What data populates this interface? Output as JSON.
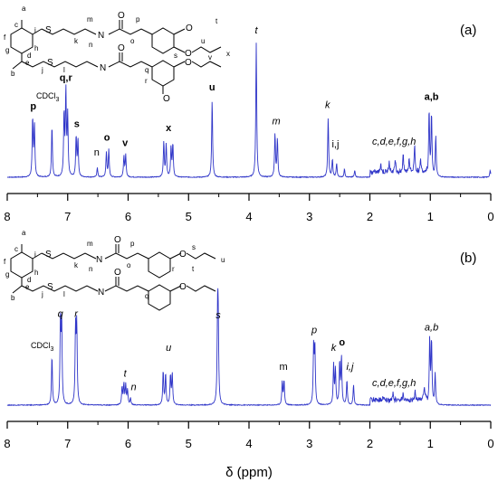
{
  "chart_data": [
    {
      "type": "line",
      "panel_label": "(a)",
      "xlim": [
        8,
        0
      ],
      "x_ticks": [
        "8",
        "7",
        "6",
        "5",
        "4",
        "3",
        "2",
        "1",
        "0"
      ],
      "solvent_label": "CDCl3",
      "series_color": "#2f35c8",
      "peaks": [
        {
          "ppm": 7.58,
          "h": 0.43
        },
        {
          "ppm": 7.55,
          "h": 0.38
        },
        {
          "ppm": 7.26,
          "h": 0.38
        },
        {
          "ppm": 7.06,
          "h": 0.46
        },
        {
          "ppm": 7.03,
          "h": 0.62
        },
        {
          "ppm": 7.0,
          "h": 0.44
        },
        {
          "ppm": 6.86,
          "h": 0.3
        },
        {
          "ppm": 6.83,
          "h": 0.27
        },
        {
          "ppm": 6.51,
          "h": 0.07
        },
        {
          "ppm": 6.36,
          "h": 0.18
        },
        {
          "ppm": 6.32,
          "h": 0.2
        },
        {
          "ppm": 6.07,
          "h": 0.15
        },
        {
          "ppm": 6.04,
          "h": 0.16
        },
        {
          "ppm": 5.41,
          "h": 0.26
        },
        {
          "ppm": 5.37,
          "h": 0.24
        },
        {
          "ppm": 5.29,
          "h": 0.22
        },
        {
          "ppm": 5.26,
          "h": 0.24
        },
        {
          "ppm": 4.61,
          "h": 0.57
        },
        {
          "ppm": 3.88,
          "h": 0.99
        },
        {
          "ppm": 3.57,
          "h": 0.32
        },
        {
          "ppm": 3.53,
          "h": 0.28
        },
        {
          "ppm": 2.69,
          "h": 0.44
        },
        {
          "ppm": 2.62,
          "h": 0.13
        },
        {
          "ppm": 2.55,
          "h": 0.1
        },
        {
          "ppm": 2.42,
          "h": 0.06
        },
        {
          "ppm": 2.25,
          "h": 0.05
        },
        {
          "ppm": 1.82,
          "h": 0.07
        },
        {
          "ppm": 1.68,
          "h": 0.09
        },
        {
          "ppm": 1.58,
          "h": 0.1
        },
        {
          "ppm": 1.45,
          "h": 0.13
        },
        {
          "ppm": 1.35,
          "h": 0.11
        },
        {
          "ppm": 1.26,
          "h": 0.2
        },
        {
          "ppm": 1.16,
          "h": 0.09
        },
        {
          "ppm": 1.02,
          "h": 0.49
        },
        {
          "ppm": 0.98,
          "h": 0.46
        },
        {
          "ppm": 0.91,
          "h": 0.3
        },
        {
          "ppm": 0.01,
          "h": 0.05
        }
      ],
      "peak_labels": [
        {
          "text": "p",
          "ppm": 7.57,
          "h": 0.48,
          "style": "bold"
        },
        {
          "text": "CDCl3",
          "ppm": 7.33,
          "h": 0.56,
          "style": "solvent"
        },
        {
          "text": "q,r",
          "ppm": 7.03,
          "h": 0.69,
          "style": "bold"
        },
        {
          "text": "s",
          "ppm": 6.85,
          "h": 0.35,
          "style": "bold"
        },
        {
          "text": "n",
          "ppm": 6.52,
          "h": 0.14,
          "style": "plain"
        },
        {
          "text": "o",
          "ppm": 6.35,
          "h": 0.25,
          "style": "bold"
        },
        {
          "text": "v",
          "ppm": 6.05,
          "h": 0.21,
          "style": "bold"
        },
        {
          "text": "x",
          "ppm": 5.33,
          "h": 0.32,
          "style": "bold"
        },
        {
          "text": "u",
          "ppm": 4.61,
          "h": 0.62,
          "style": "bold"
        },
        {
          "text": "t",
          "ppm": 3.88,
          "h": 1.04,
          "style": "italic"
        },
        {
          "text": "m",
          "ppm": 3.55,
          "h": 0.37,
          "style": "italic"
        },
        {
          "text": "k",
          "ppm": 2.7,
          "h": 0.49,
          "style": "italic"
        },
        {
          "text": "i,j",
          "ppm": 2.57,
          "h": 0.2,
          "style": "plain"
        },
        {
          "text": "c,d,e,f,g,h",
          "ppm": 1.6,
          "h": 0.22,
          "style": "italic"
        },
        {
          "text": "a,b",
          "ppm": 0.98,
          "h": 0.55,
          "style": "bold"
        }
      ]
    },
    {
      "type": "line",
      "panel_label": "(b)",
      "xlim": [
        8,
        0
      ],
      "x_ticks": [
        "8",
        "7",
        "6",
        "5",
        "4",
        "3",
        "2",
        "1",
        "0"
      ],
      "xlabel": "δ (ppm)",
      "solvent_label": "CDCl3",
      "series_color": "#2f35c8",
      "peaks": [
        {
          "ppm": 7.26,
          "h": 0.36
        },
        {
          "ppm": 7.12,
          "h": 0.58
        },
        {
          "ppm": 7.1,
          "h": 0.6
        },
        {
          "ppm": 6.87,
          "h": 0.55
        },
        {
          "ppm": 6.85,
          "h": 0.57
        },
        {
          "ppm": 6.1,
          "h": 0.13
        },
        {
          "ppm": 6.07,
          "h": 0.15
        },
        {
          "ppm": 6.04,
          "h": 0.14
        },
        {
          "ppm": 6.01,
          "h": 0.11
        },
        {
          "ppm": 5.96,
          "h": 0.05
        },
        {
          "ppm": 5.42,
          "h": 0.25
        },
        {
          "ppm": 5.38,
          "h": 0.23
        },
        {
          "ppm": 5.3,
          "h": 0.22
        },
        {
          "ppm": 5.27,
          "h": 0.23
        },
        {
          "ppm": 4.52,
          "h": 0.57
        },
        {
          "ppm": 4.51,
          "h": 0.56
        },
        {
          "ppm": 3.45,
          "h": 0.17
        },
        {
          "ppm": 3.42,
          "h": 0.18
        },
        {
          "ppm": 2.93,
          "h": 0.43
        },
        {
          "ppm": 2.91,
          "h": 0.41
        },
        {
          "ppm": 2.6,
          "h": 0.29
        },
        {
          "ppm": 2.57,
          "h": 0.26
        },
        {
          "ppm": 2.5,
          "h": 0.31
        },
        {
          "ppm": 2.47,
          "h": 0.35
        },
        {
          "ppm": 2.38,
          "h": 0.18
        },
        {
          "ppm": 2.27,
          "h": 0.15
        },
        {
          "ppm": 1.78,
          "h": 0.04
        },
        {
          "ppm": 1.62,
          "h": 0.05
        },
        {
          "ppm": 1.45,
          "h": 0.05
        },
        {
          "ppm": 1.25,
          "h": 0.06
        },
        {
          "ppm": 1.1,
          "h": 0.09
        },
        {
          "ppm": 1.01,
          "h": 0.48
        },
        {
          "ppm": 0.98,
          "h": 0.47
        },
        {
          "ppm": 0.92,
          "h": 0.23
        }
      ],
      "peak_labels": [
        {
          "text": "CDCl3",
          "ppm": 7.42,
          "h": 0.4,
          "style": "solvent"
        },
        {
          "text": "q",
          "ppm": 7.12,
          "h": 0.63,
          "style": "italic"
        },
        {
          "text": "r",
          "ppm": 6.86,
          "h": 0.63,
          "style": "italic"
        },
        {
          "text": "t",
          "ppm": 6.05,
          "h": 0.19,
          "style": "italic"
        },
        {
          "text": "n",
          "ppm": 5.91,
          "h": 0.09,
          "style": "italic"
        },
        {
          "text": "u",
          "ppm": 5.33,
          "h": 0.38,
          "style": "italic"
        },
        {
          "text": "s",
          "ppm": 4.51,
          "h": 0.62,
          "style": "italic"
        },
        {
          "text": "m",
          "ppm": 3.43,
          "h": 0.24,
          "style": "plain"
        },
        {
          "text": "p",
          "ppm": 2.92,
          "h": 0.51,
          "style": "italic"
        },
        {
          "text": "k",
          "ppm": 2.6,
          "h": 0.38,
          "style": "italic"
        },
        {
          "text": "o",
          "ppm": 2.46,
          "h": 0.42,
          "style": "bold"
        },
        {
          "text": "i,j",
          "ppm": 2.33,
          "h": 0.24,
          "style": "italic"
        },
        {
          "text": "c,d,e,f,g,h",
          "ppm": 1.6,
          "h": 0.12,
          "style": "italic"
        },
        {
          "text": "a,b",
          "ppm": 0.98,
          "h": 0.53,
          "style": "italic"
        }
      ]
    }
  ],
  "structure_labels": {
    "a": [
      "a",
      "b",
      "c",
      "d",
      "e",
      "f",
      "g",
      "h",
      "i",
      "j",
      "k",
      "l",
      "m",
      "n",
      "o",
      "p",
      "q",
      "r",
      "s",
      "t",
      "u",
      "v",
      "x"
    ],
    "b": [
      "a",
      "b",
      "c",
      "d",
      "e",
      "f",
      "g",
      "h",
      "i",
      "j",
      "k",
      "l",
      "m",
      "n",
      "o",
      "p",
      "q",
      "r",
      "s",
      "t",
      "u"
    ]
  },
  "structure_atoms": {
    "sulfur": "S",
    "nitrogen_h": "N",
    "hydrogen": "H",
    "oxygen": "O"
  }
}
